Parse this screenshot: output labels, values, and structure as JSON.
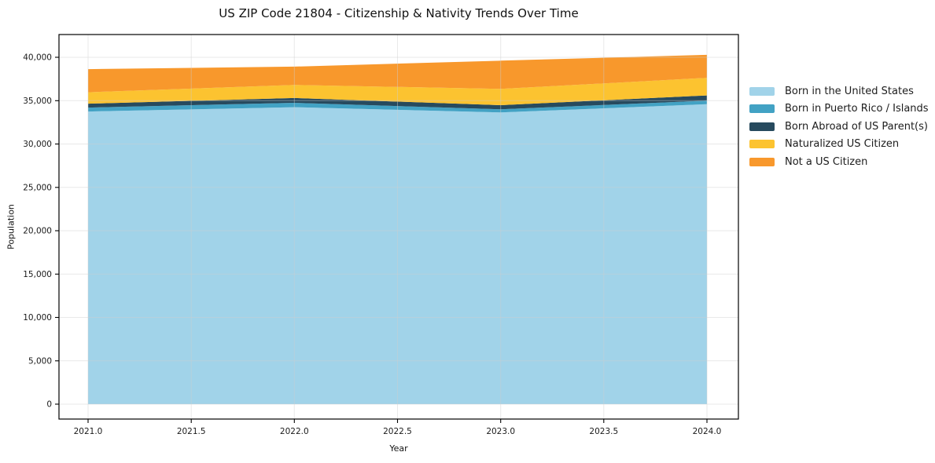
{
  "chart_data": {
    "type": "area",
    "stacked": true,
    "title": "US ZIP Code 21804 - Citizenship & Nativity Trends Over Time",
    "xlabel": "Year",
    "ylabel": "Population",
    "x": [
      2021,
      2022,
      2023,
      2024
    ],
    "series": [
      {
        "name": "Born in the United States",
        "color": "#a1d3e9",
        "values": [
          33750,
          34240,
          33640,
          34600
        ]
      },
      {
        "name": "Born in Puerto Rico / Islands",
        "color": "#42a2c4",
        "values": [
          450,
          515,
          360,
          400
        ]
      },
      {
        "name": "Born Abroad of US Parent(s)",
        "color": "#274a5e",
        "values": [
          455,
          545,
          480,
          600
        ]
      },
      {
        "name": "Naturalized US Citizen",
        "color": "#fcc330",
        "values": [
          1310,
          1510,
          1875,
          2030
        ]
      },
      {
        "name": "Not a US Citizen",
        "color": "#f8982c",
        "values": [
          2670,
          2110,
          3260,
          2650
        ]
      }
    ],
    "totals_by_year": [
      38635,
      38920,
      39615,
      40280
    ],
    "xtick_values": [
      2021.0,
      2021.5,
      2022.0,
      2022.5,
      2023.0,
      2023.5,
      2024.0
    ],
    "xtick_labels": [
      "2021.0",
      "2021.5",
      "2022.0",
      "2022.5",
      "2023.0",
      "2023.5",
      "2024.0"
    ],
    "ytick_values": [
      0,
      5000,
      10000,
      15000,
      20000,
      25000,
      30000,
      35000,
      40000
    ],
    "ytick_labels": [
      "0",
      "5,000",
      "10,000",
      "15,000",
      "20,000",
      "25,000",
      "30,000",
      "35,000",
      "40,000"
    ],
    "ylim": [
      -1720,
      42630
    ],
    "xlim": [
      2020.86,
      2024.15
    ],
    "grid": true,
    "legend_position": "right",
    "colors": {
      "gridline": "#cfcfcf",
      "spine": "#000000",
      "tick_text": "#1a1a1a"
    }
  }
}
